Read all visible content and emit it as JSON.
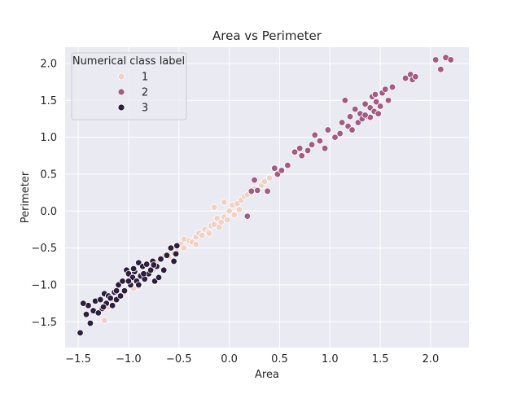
{
  "chart_data": {
    "type": "scatter",
    "title": "Area vs Perimeter",
    "xlabel": "Area",
    "ylabel": "Perimeter",
    "xlim": [
      -1.63,
      2.38
    ],
    "ylim": [
      -1.85,
      2.22
    ],
    "xticks": [
      -1.5,
      -1.0,
      -0.5,
      0.0,
      0.5,
      1.0,
      1.5,
      2.0
    ],
    "xtick_labels": [
      "−1.5",
      "−1.0",
      "−0.5",
      "0.0",
      "0.5",
      "1.0",
      "1.5",
      "2.0"
    ],
    "yticks": [
      -1.5,
      -1.0,
      -0.5,
      0.0,
      0.5,
      1.0,
      1.5,
      2.0
    ],
    "ytick_labels": [
      "−1.5",
      "−1.0",
      "−0.5",
      "0.0",
      "0.5",
      "1.0",
      "1.5",
      "2.0"
    ],
    "grid": true,
    "legend": {
      "title": "Numerical class label",
      "placement": "top-left",
      "entries": [
        "1",
        "2",
        "3"
      ]
    },
    "colors": {
      "background": "#eaeaf2",
      "grid": "#ffffff",
      "1": "#efd1c6",
      "2": "#a35a83",
      "3": "#2d1e3e"
    },
    "series": [
      {
        "name": "1",
        "points": [
          [
            -1.24,
            -1.48
          ],
          [
            -1.2,
            -1.3
          ],
          [
            -1.15,
            -1.25
          ],
          [
            -1.05,
            -1.12
          ],
          [
            -0.98,
            -1.0
          ],
          [
            -0.93,
            -0.95
          ],
          [
            -0.9,
            -1.02
          ],
          [
            -0.86,
            -0.9
          ],
          [
            -0.82,
            -0.88
          ],
          [
            -0.78,
            -0.78
          ],
          [
            -0.75,
            -0.8
          ],
          [
            -0.72,
            -0.68
          ],
          [
            -0.68,
            -0.65
          ],
          [
            -0.64,
            -0.6
          ],
          [
            -0.6,
            -0.58
          ],
          [
            -0.56,
            -0.52
          ],
          [
            -0.52,
            -0.55
          ],
          [
            -0.48,
            -0.45
          ],
          [
            -0.45,
            -0.5
          ],
          [
            -0.4,
            -0.4
          ],
          [
            -0.37,
            -0.42
          ],
          [
            -0.33,
            -0.35
          ],
          [
            -0.3,
            -0.3
          ],
          [
            -0.27,
            -0.33
          ],
          [
            -0.24,
            -0.25
          ],
          [
            -0.21,
            -0.28
          ],
          [
            -0.18,
            -0.2
          ],
          [
            -0.15,
            -0.18
          ],
          [
            -0.12,
            -0.1
          ],
          [
            -0.1,
            -0.22
          ],
          [
            -0.08,
            -0.15
          ],
          [
            -0.05,
            -0.08
          ],
          [
            -0.02,
            -0.12
          ],
          [
            0.0,
            0.0
          ],
          [
            0.03,
            0.08
          ],
          [
            0.05,
            -0.05
          ],
          [
            0.08,
            0.1
          ],
          [
            0.1,
            0.02
          ],
          [
            0.12,
            0.15
          ],
          [
            0.15,
            0.2
          ],
          [
            0.18,
            0.22
          ],
          [
            0.22,
            0.25
          ],
          [
            0.25,
            0.3
          ],
          [
            0.28,
            0.28
          ],
          [
            0.32,
            0.35
          ],
          [
            0.35,
            0.4
          ],
          [
            0.4,
            0.45
          ],
          [
            -0.15,
            0.05
          ],
          [
            -0.2,
            -0.3
          ],
          [
            -0.33,
            -0.45
          ],
          [
            -0.45,
            -0.38
          ],
          [
            -0.6,
            -0.62
          ],
          [
            -0.58,
            -0.48
          ],
          [
            -0.95,
            -1.05
          ],
          [
            -0.55,
            -0.57
          ],
          [
            -0.05,
            0.12
          ]
        ]
      },
      {
        "name": "2",
        "points": [
          [
            0.18,
            -0.07
          ],
          [
            0.22,
            0.27
          ],
          [
            0.25,
            0.42
          ],
          [
            0.28,
            0.28
          ],
          [
            0.38,
            0.27
          ],
          [
            0.45,
            0.58
          ],
          [
            0.48,
            0.5
          ],
          [
            0.52,
            0.55
          ],
          [
            0.58,
            0.62
          ],
          [
            0.65,
            0.8
          ],
          [
            0.7,
            0.85
          ],
          [
            0.72,
            0.75
          ],
          [
            0.78,
            0.82
          ],
          [
            0.82,
            0.9
          ],
          [
            0.85,
            1.03
          ],
          [
            0.9,
            0.95
          ],
          [
            0.95,
            0.85
          ],
          [
            0.98,
            1.1
          ],
          [
            1.05,
            1.0
          ],
          [
            1.1,
            1.05
          ],
          [
            1.12,
            1.2
          ],
          [
            1.15,
            1.5
          ],
          [
            1.18,
            1.15
          ],
          [
            1.2,
            1.28
          ],
          [
            1.22,
            1.1
          ],
          [
            1.25,
            1.38
          ],
          [
            1.28,
            1.2
          ],
          [
            1.3,
            1.32
          ],
          [
            1.32,
            1.25
          ],
          [
            1.35,
            1.45
          ],
          [
            1.38,
            1.28
          ],
          [
            1.4,
            1.4
          ],
          [
            1.42,
            1.55
          ],
          [
            1.44,
            1.35
          ],
          [
            1.46,
            1.48
          ],
          [
            1.48,
            1.32
          ],
          [
            1.5,
            1.42
          ],
          [
            1.52,
            1.6
          ],
          [
            1.55,
            1.65
          ],
          [
            1.58,
            1.5
          ],
          [
            1.62,
            1.68
          ],
          [
            1.75,
            1.8
          ],
          [
            1.8,
            1.85
          ],
          [
            1.82,
            1.78
          ],
          [
            1.85,
            1.82
          ],
          [
            2.05,
            2.05
          ],
          [
            2.1,
            1.92
          ],
          [
            2.15,
            2.08
          ],
          [
            2.2,
            2.05
          ],
          [
            1.4,
            1.27
          ],
          [
            1.45,
            1.58
          ],
          [
            1.35,
            1.3
          ]
        ]
      },
      {
        "name": "3",
        "points": [
          [
            -1.48,
            -1.65
          ],
          [
            -1.42,
            -1.4
          ],
          [
            -1.4,
            -1.28
          ],
          [
            -1.38,
            -1.52
          ],
          [
            -1.35,
            -1.35
          ],
          [
            -1.33,
            -1.22
          ],
          [
            -1.3,
            -1.38
          ],
          [
            -1.28,
            -1.2
          ],
          [
            -1.26,
            -1.32
          ],
          [
            -1.24,
            -1.12
          ],
          [
            -1.22,
            -1.25
          ],
          [
            -1.2,
            -1.15
          ],
          [
            -1.18,
            -1.18
          ],
          [
            -1.16,
            -1.28
          ],
          [
            -1.14,
            -1.1
          ],
          [
            -1.12,
            -1.2
          ],
          [
            -1.1,
            -1.0
          ],
          [
            -1.08,
            -1.15
          ],
          [
            -1.06,
            -0.95
          ],
          [
            -1.04,
            -1.08
          ],
          [
            -1.02,
            -0.8
          ],
          [
            -1.0,
            -0.85
          ],
          [
            -0.98,
            -1.0
          ],
          [
            -0.96,
            -0.9
          ],
          [
            -0.94,
            -0.82
          ],
          [
            -0.92,
            -0.95
          ],
          [
            -0.9,
            -0.7
          ],
          [
            -0.88,
            -0.88
          ],
          [
            -0.86,
            -0.75
          ],
          [
            -0.84,
            -0.92
          ],
          [
            -0.82,
            -0.72
          ],
          [
            -0.8,
            -0.85
          ],
          [
            -0.78,
            -0.8
          ],
          [
            -0.76,
            -0.68
          ],
          [
            -0.74,
            -0.95
          ],
          [
            -0.72,
            -0.75
          ],
          [
            -0.7,
            -0.9
          ],
          [
            -0.68,
            -0.65
          ],
          [
            -0.65,
            -0.8
          ],
          [
            -0.62,
            -0.6
          ],
          [
            -0.58,
            -0.5
          ],
          [
            -0.55,
            -0.68
          ],
          [
            -0.53,
            -0.58
          ],
          [
            -0.52,
            -0.47
          ],
          [
            -1.45,
            -1.25
          ],
          [
            -1.25,
            -1.3
          ],
          [
            -1.12,
            -1.08
          ],
          [
            -0.95,
            -0.78
          ],
          [
            -0.85,
            -0.85
          ],
          [
            -0.75,
            -0.73
          ],
          [
            -1.0,
            -0.95
          ],
          [
            -0.9,
            -1.0
          ]
        ]
      }
    ]
  }
}
